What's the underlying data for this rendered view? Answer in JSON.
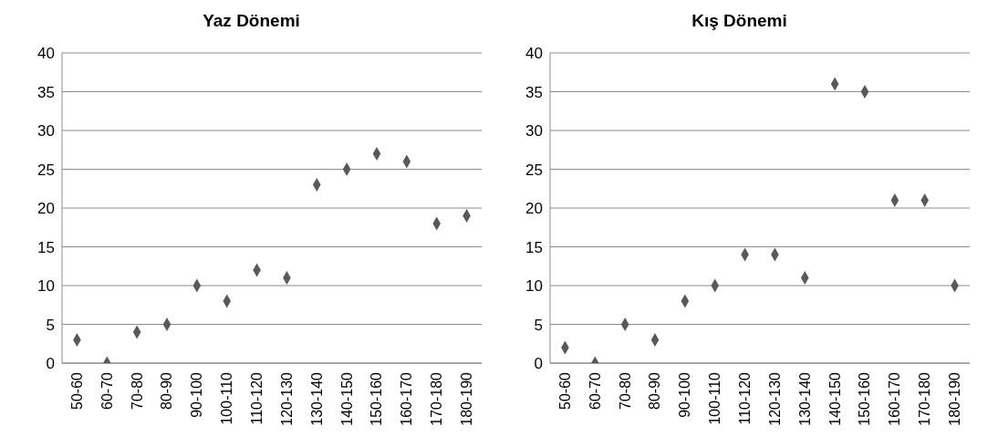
{
  "chart_data": [
    {
      "type": "scatter",
      "title": "Yaz Dönemi",
      "categories": [
        "50-60",
        "60-70",
        "70-80",
        "80-90",
        "90-100",
        "100-110",
        "110-120",
        "120-130",
        "130-140",
        "140-150",
        "150-160",
        "160-170",
        "170-180",
        "180-190"
      ],
      "series": [
        {
          "color": "#595959",
          "values": [
            3,
            0,
            4,
            5,
            10,
            8,
            12,
            11,
            23,
            25,
            27,
            26,
            18,
            19
          ]
        }
      ],
      "ylim": [
        0,
        40
      ],
      "yticks": [
        0,
        5,
        10,
        15,
        20,
        25,
        30,
        35,
        40
      ],
      "grid": "y",
      "legend": false,
      "marker": "diamond"
    },
    {
      "type": "scatter",
      "title": "Kış Dönemi",
      "categories": [
        "50-60",
        "60-70",
        "70-80",
        "80-90",
        "90-100",
        "100-110",
        "110-120",
        "120-130",
        "130-140",
        "140-150",
        "150-160",
        "160-170",
        "170-180",
        "180-190"
      ],
      "series": [
        {
          "color": "#595959",
          "values": [
            2,
            0,
            5,
            3,
            8,
            10,
            14,
            14,
            11,
            36,
            35,
            21,
            21,
            10
          ]
        }
      ],
      "ylim": [
        0,
        40
      ],
      "yticks": [
        0,
        5,
        10,
        15,
        20,
        25,
        30,
        35,
        40
      ],
      "grid": "y",
      "legend": false,
      "marker": "diamond"
    }
  ]
}
